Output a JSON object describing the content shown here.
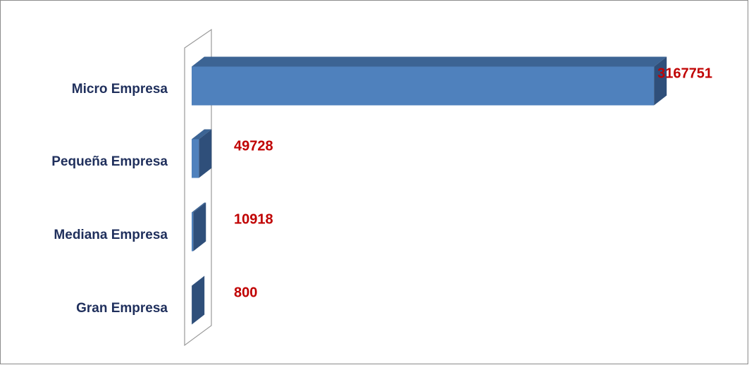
{
  "chart_data": {
    "type": "bar3d-horizontal",
    "categories": [
      "Micro Empresa",
      "Pequeña Empresa",
      "Mediana Empresa",
      "Gran Empresa"
    ],
    "values": [
      3167751,
      49728,
      10918,
      800
    ],
    "color": "#4f81bd",
    "xlim": [
      0,
      3500000
    ],
    "value_label_color": "#c00000"
  }
}
